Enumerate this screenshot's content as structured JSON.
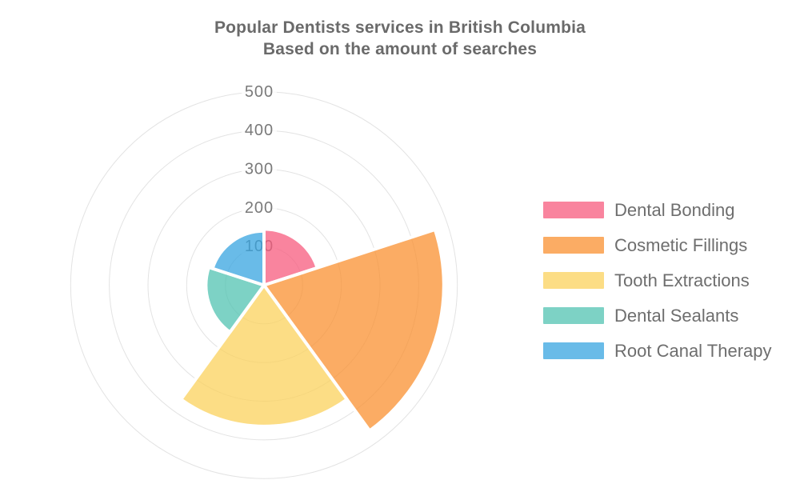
{
  "title": {
    "line1": "Popular Dentists services in British Columbia",
    "line2": "Based on the amount of searches"
  },
  "chart_data": {
    "type": "polar-area",
    "title": "Popular Dentists services in British Columbia — Based on the amount of searches",
    "categories": [
      "Dental Bonding",
      "Cosmetic Fillings",
      "Tooth Extractions",
      "Dental Sealants",
      "Root Canal Therapy"
    ],
    "values": [
      145,
      465,
      365,
      150,
      140
    ],
    "colors": [
      "rgba(247,91,126,0.75)",
      "rgba(250,144,48,0.75)",
      "rgba(251,210,92,0.75)",
      "rgba(82,195,178,0.75)",
      "rgba(55,164,224,0.75)"
    ],
    "radial_ticks": [
      100,
      200,
      300,
      400,
      500
    ],
    "rlim": [
      0,
      500
    ],
    "start_angle_deg": 0,
    "direction": "clockwise",
    "slice_angle_deg": 72,
    "grid": true,
    "legend_position": "right"
  },
  "legend": {
    "items": [
      {
        "label": "Dental Bonding",
        "color": "rgba(247,91,126,0.75)"
      },
      {
        "label": "Cosmetic Fillings",
        "color": "rgba(250,144,48,0.75)"
      },
      {
        "label": "Tooth Extractions",
        "color": "rgba(251,210,92,0.75)"
      },
      {
        "label": "Dental Sealants",
        "color": "rgba(82,195,178,0.75)"
      },
      {
        "label": "Root Canal Therapy",
        "color": "rgba(55,164,224,0.75)"
      }
    ]
  },
  "styles": {
    "background": "#ffffff",
    "title_color": "#6a6a6a",
    "tick_color": "#7a7a7a",
    "tick_backdrop": "rgba(255,255,255,0.75)",
    "legend_text_color": "#6e6e6e",
    "grid_color": "#e3e3e3",
    "slice_border_color": "#ffffff"
  }
}
